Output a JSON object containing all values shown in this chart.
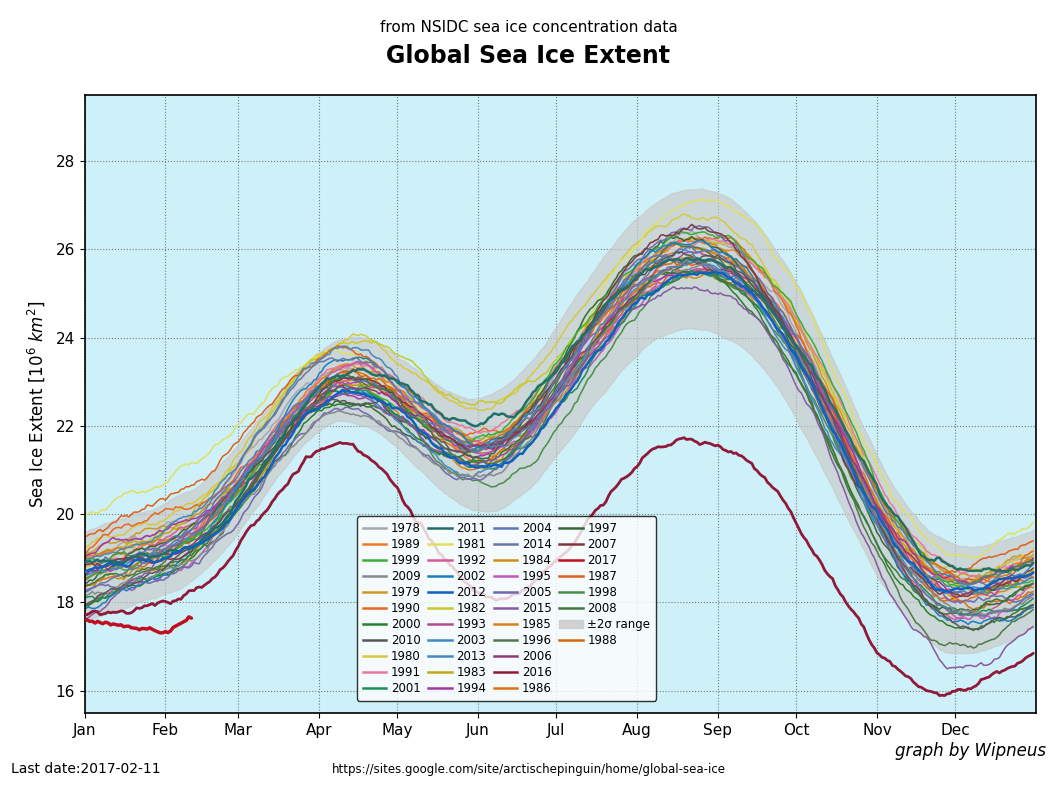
{
  "title_line1": "from NSIDC sea ice concentration data",
  "title_line2": "Global Sea Ice Extent",
  "ylabel": "Sea Ice Extent [$10^6\\ km^2$]",
  "ylim": [
    15.5,
    29.5
  ],
  "yticks": [
    16,
    18,
    20,
    22,
    24,
    26,
    28
  ],
  "background_color": "#cef0f8",
  "last_date": "Last date:2017-02-11",
  "url": "https://sites.google.com/site/arctischepinguin/home/global-sea-ice",
  "credit": "graph by Wipneus",
  "months": [
    "Jan",
    "Feb",
    "Mar",
    "Apr",
    "May",
    "Jun",
    "Jul",
    "Aug",
    "Sep",
    "Oct",
    "Nov",
    "Dec"
  ],
  "year_colors": {
    "1978": "#a8a8a8",
    "1979": "#d09820",
    "1980": "#d8c840",
    "1981": "#e0e060",
    "1982": "#c8c828",
    "1983": "#c0a818",
    "1984": "#d09010",
    "1985": "#d88018",
    "1986": "#e07010",
    "1987": "#e06018",
    "1988": "#d86808",
    "1989": "#f07828",
    "1990": "#e86820",
    "1991": "#e878a0",
    "1992": "#d85898",
    "1993": "#b84898",
    "1994": "#a038a8",
    "1995": "#c058b8",
    "1996": "#507848",
    "1997": "#386838",
    "1998": "#489048",
    "1999": "#38b038",
    "2000": "#288028",
    "2001": "#189058",
    "2002": "#1880c0",
    "2003": "#4088c8",
    "2004": "#5878b8",
    "2005": "#7068b0",
    "2006": "#903878",
    "2007": "#803838",
    "2008": "#407840",
    "2009": "#888888",
    "2010": "#585858",
    "2011": "#207068",
    "2012": "#1060c0",
    "2013": "#4888b8",
    "2014": "#6878a0",
    "2015": "#8858a0",
    "2016": "#901838",
    "2017": "#c01020"
  }
}
